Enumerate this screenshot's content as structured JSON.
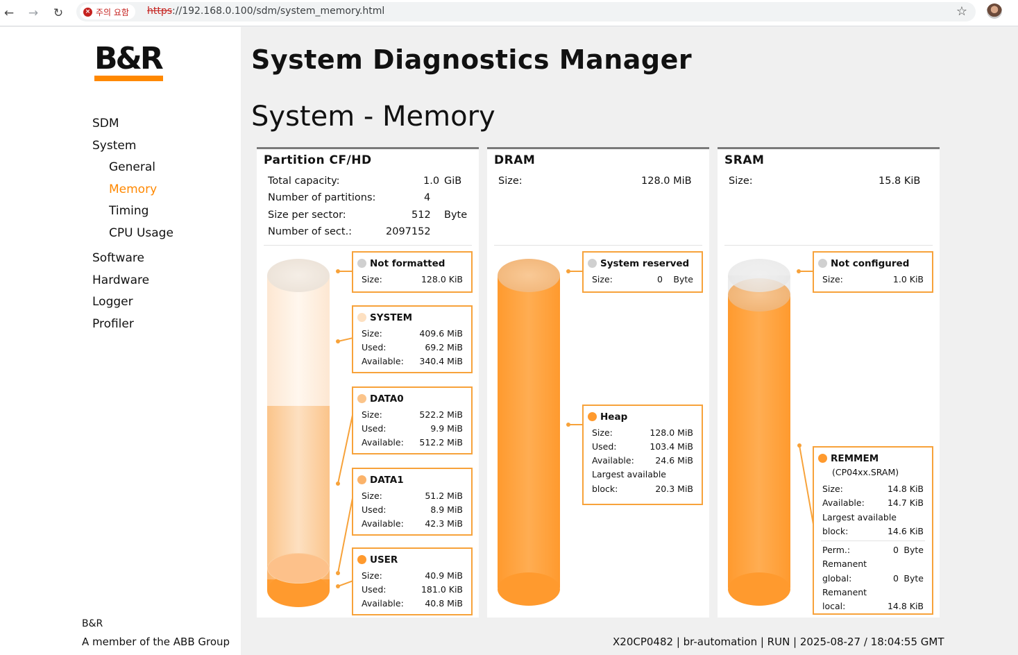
{
  "browser": {
    "warning_text": "주의 요함",
    "url_scheme": "https",
    "url_rest": "://192.168.0.100/sdm/system_memory.html"
  },
  "sidebar": {
    "brand_text": "B&R",
    "nav": [
      {
        "label": "SDM"
      },
      {
        "label": "System"
      },
      {
        "label": "General"
      },
      {
        "label": "Memory"
      },
      {
        "label": "Timing"
      },
      {
        "label": "CPU Usage"
      },
      {
        "label": "Software"
      },
      {
        "label": "Hardware"
      },
      {
        "label": "Logger"
      },
      {
        "label": "Profiler"
      }
    ],
    "footer_brand": "B&R",
    "footer_sub": "A member of the ABB Group"
  },
  "header": {
    "app_title": "System Diagnostics Manager",
    "page_title": "System - Memory"
  },
  "status_line": "X20CP0482 | br-automation | RUN | 2025-08-27 / 18:04:55 GMT",
  "panels": {
    "cf": {
      "title": "Partition CF/HD",
      "info": [
        {
          "label": "Total capacity:",
          "value": "1.0",
          "unit": "GiB"
        },
        {
          "label": "Number of partitions:",
          "value": "4",
          "unit": ""
        },
        {
          "label": "Size per sector:",
          "value": "512",
          "unit": "Byte"
        },
        {
          "label": "Number of sect.:",
          "value": "2097152",
          "unit": ""
        }
      ],
      "boxes": [
        {
          "name": "Not formatted",
          "rows": [
            [
              "Size:",
              "128.0 KiB"
            ]
          ]
        },
        {
          "name": "SYSTEM",
          "rows": [
            [
              "Size:",
              "409.6 MiB"
            ],
            [
              "Used:",
              "69.2 MiB"
            ],
            [
              "Available:",
              "340.4 MiB"
            ]
          ]
        },
        {
          "name": "DATA0",
          "rows": [
            [
              "Size:",
              "522.2 MiB"
            ],
            [
              "Used:",
              "9.9 MiB"
            ],
            [
              "Available:",
              "512.2 MiB"
            ]
          ]
        },
        {
          "name": "DATA1",
          "rows": [
            [
              "Size:",
              "51.2 MiB"
            ],
            [
              "Used:",
              "8.9 MiB"
            ],
            [
              "Available:",
              "42.3 MiB"
            ]
          ]
        },
        {
          "name": "USER",
          "rows": [
            [
              "Size:",
              "40.9 MiB"
            ],
            [
              "Used:",
              "181.0 KiB"
            ],
            [
              "Available:",
              "40.8 MiB"
            ]
          ]
        }
      ]
    },
    "dram": {
      "title": "DRAM",
      "info": [
        {
          "label": "Size:",
          "value": "128.0 MiB"
        }
      ],
      "boxes": [
        {
          "name": "System reserved",
          "rows": [
            [
              "Size:",
              "0",
              "Byte"
            ]
          ]
        },
        {
          "name": "Heap",
          "rows": [
            [
              "Size:",
              "128.0 MiB"
            ],
            [
              "Used:",
              "103.4 MiB"
            ],
            [
              "Available:",
              "24.6 MiB"
            ],
            [
              "Largest available",
              ""
            ],
            [
              "block:",
              "20.3 MiB"
            ]
          ]
        }
      ]
    },
    "sram": {
      "title": "SRAM",
      "info": [
        {
          "label": "Size:",
          "value": "15.8 KiB"
        }
      ],
      "boxes": [
        {
          "name": "Not configured",
          "rows": [
            [
              "Size:",
              "1.0 KiB"
            ]
          ]
        },
        {
          "name": "REMMEM",
          "subtitle": "(CP04xx.SRAM)",
          "rows": [
            [
              "Size:",
              "14.8 KiB"
            ],
            [
              "Available:",
              "14.7 KiB"
            ],
            [
              "Largest available",
              ""
            ],
            [
              "block:",
              "14.6 KiB"
            ],
            [
              "Perm.:",
              "0",
              "Byte"
            ],
            [
              "Remanent",
              ""
            ],
            [
              "global:",
              "0",
              "Byte"
            ],
            [
              "Remanent",
              ""
            ],
            [
              "local:",
              "14.8 KiB"
            ]
          ]
        }
      ]
    }
  },
  "colors": {
    "accent": "#ff8800",
    "box_border": "#f7a23a",
    "panel_rule": "#7a7a7a"
  }
}
